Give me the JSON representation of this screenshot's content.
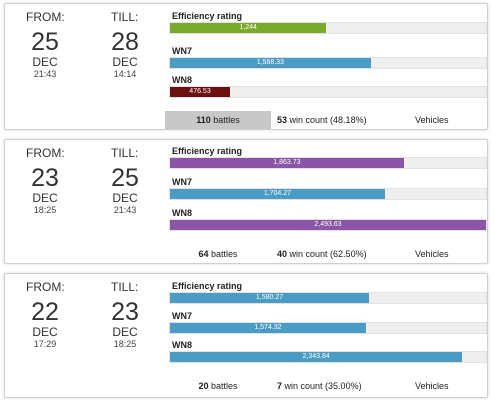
{
  "colors": {
    "green": "#7aaa2c",
    "blue": "#4a9cc5",
    "darkred": "#6b0f0f",
    "purple": "#8b54a6",
    "highlight": "#c8c8c8"
  },
  "labels": {
    "from": "FROM:",
    "till": "TILL:",
    "efficiency": "Efficiency rating",
    "wn7": "WN7",
    "wn8": "WN8",
    "battles_suffix": "battles",
    "vehicles": "Vehicles"
  },
  "sessions": [
    {
      "from": {
        "day": "25",
        "month": "DEC",
        "time": "21:43"
      },
      "till": {
        "day": "28",
        "month": "DEC",
        "time": "14:14"
      },
      "efficiency": {
        "value": "1,244",
        "fraction": 0.495,
        "color": "#7aaa2c"
      },
      "wn7": {
        "value": "1,588.33",
        "fraction": 0.635,
        "color": "#4a9cc5"
      },
      "wn8": {
        "value": "476.53",
        "fraction": 0.19,
        "color": "#6b0f0f"
      },
      "battles": "110",
      "win_count": "53",
      "win_rate": "win count (48.18%)"
    },
    {
      "from": {
        "day": "23",
        "month": "DEC",
        "time": "18:25"
      },
      "till": {
        "day": "25",
        "month": "DEC",
        "time": "21:43"
      },
      "efficiency": {
        "value": "1,863.73",
        "fraction": 0.74,
        "color": "#8b54a6"
      },
      "wn7": {
        "value": "1,704.27",
        "fraction": 0.68,
        "color": "#4a9cc5"
      },
      "wn8": {
        "value": "2,493.63",
        "fraction": 1.0,
        "color": "#8b54a6"
      },
      "battles": "64",
      "win_count": "40",
      "win_rate": "win count (62.50%)"
    },
    {
      "from": {
        "day": "22",
        "month": "DEC",
        "time": "17:29"
      },
      "till": {
        "day": "23",
        "month": "DEC",
        "time": "18:25"
      },
      "efficiency": {
        "value": "1,580.27",
        "fraction": 0.63,
        "color": "#4a9cc5"
      },
      "wn7": {
        "value": "1,574.32",
        "fraction": 0.62,
        "color": "#4a9cc5"
      },
      "wn8": {
        "value": "2,343.84",
        "fraction": 0.925,
        "color": "#4a9cc5"
      },
      "battles": "20",
      "win_count": "7",
      "win_rate": "win count (35.00%)"
    }
  ]
}
